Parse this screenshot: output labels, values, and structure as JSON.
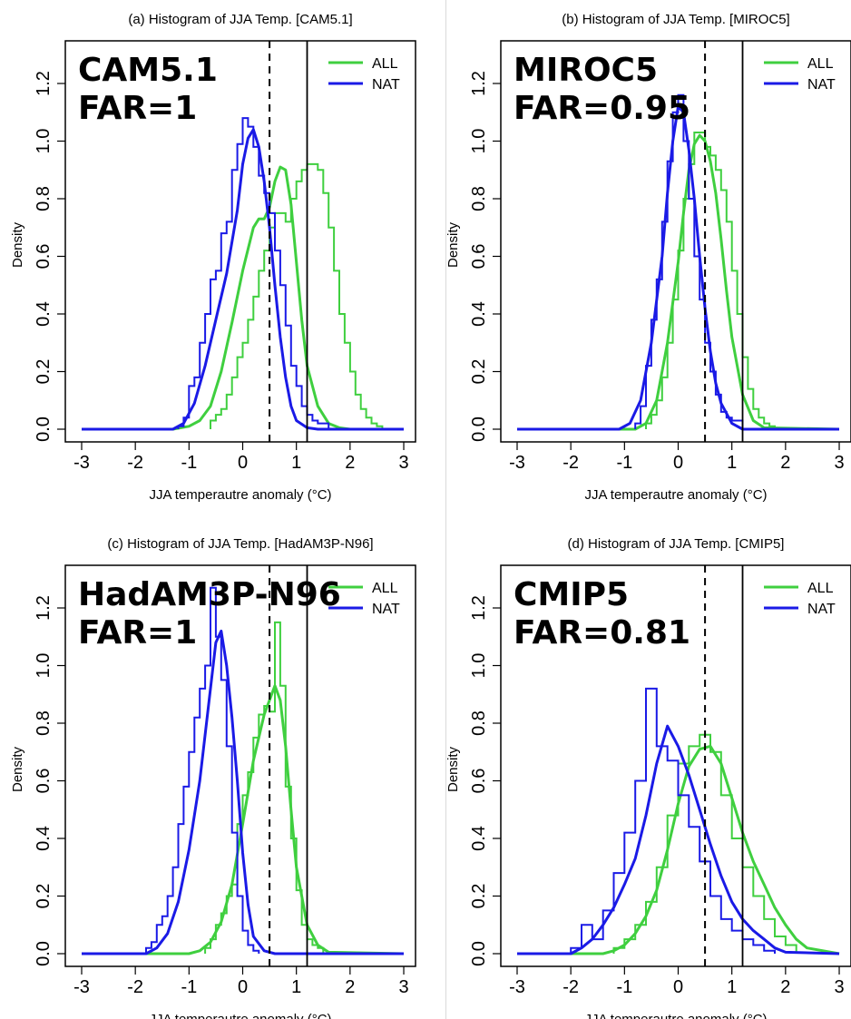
{
  "figure": {
    "colors": {
      "all": "#3fcf3f",
      "nat": "#1a1ae6",
      "axis": "#000000"
    },
    "xticks": [
      "-3",
      "-2",
      "-1",
      "0",
      "1",
      "2",
      "3"
    ],
    "yticks": [
      "0.0",
      "0.2",
      "0.4",
      "0.6",
      "0.8",
      "1.0",
      "1.2"
    ],
    "xlim": [
      -3,
      3
    ],
    "ylim": [
      0,
      1.3
    ]
  },
  "chart_data": [
    {
      "type": "histogram",
      "title": "(a) Histogram of JJA Temp. [CAM5.1]",
      "model": "CAM5.1",
      "far": "FAR=1",
      "xlabel": "JJA temperautre anomaly (°C)",
      "ylabel": "Density",
      "legend": [
        "ALL",
        "NAT"
      ],
      "legend_position": "top-right",
      "ref_dashed_x": 0.5,
      "ref_solid_x": 1.2,
      "series": [
        {
          "name": "ALL",
          "bin_width": 0.1,
          "hist_start": -0.6,
          "hist": [
            0.03,
            0.05,
            0.07,
            0.12,
            0.18,
            0.25,
            0.3,
            0.38,
            0.46,
            0.55,
            0.62,
            0.7,
            0.75,
            0.75,
            0.72,
            0.8,
            0.86,
            0.9,
            0.92,
            0.92,
            0.9,
            0.82,
            0.7,
            0.55,
            0.4,
            0.3,
            0.2,
            0.12,
            0.07,
            0.04,
            0.02,
            0.01
          ],
          "curve_x": [
            -3,
            -1.3,
            -1,
            -0.8,
            -0.6,
            -0.4,
            -0.2,
            0,
            0.2,
            0.3,
            0.4,
            0.5,
            0.6,
            0.7,
            0.8,
            0.9,
            1,
            1.1,
            1.2,
            1.4,
            1.6,
            1.8,
            2,
            3
          ],
          "curve_y": [
            0,
            0,
            0.01,
            0.03,
            0.08,
            0.2,
            0.37,
            0.55,
            0.7,
            0.73,
            0.73,
            0.77,
            0.86,
            0.91,
            0.9,
            0.78,
            0.58,
            0.38,
            0.22,
            0.08,
            0.02,
            0.005,
            0,
            0
          ]
        },
        {
          "name": "NAT",
          "bin_width": 0.1,
          "hist_start": -1.2,
          "hist": [
            0.01,
            0.04,
            0.15,
            0.18,
            0.3,
            0.4,
            0.52,
            0.55,
            0.68,
            0.72,
            0.9,
            0.99,
            1.08,
            1.05,
            0.98,
            0.88,
            0.82,
            0.75,
            0.62,
            0.5,
            0.36,
            0.22,
            0.15,
            0.08,
            0.05,
            0.03,
            0.02,
            0.02
          ],
          "curve_x": [
            -3,
            -1.3,
            -1.1,
            -0.9,
            -0.7,
            -0.5,
            -0.3,
            -0.1,
            0,
            0.1,
            0.2,
            0.3,
            0.4,
            0.5,
            0.6,
            0.7,
            0.8,
            0.9,
            1,
            1.2,
            1.4,
            3
          ],
          "curve_y": [
            0,
            0,
            0.02,
            0.09,
            0.22,
            0.38,
            0.54,
            0.76,
            0.92,
            1.01,
            1.04,
            0.98,
            0.86,
            0.7,
            0.5,
            0.32,
            0.18,
            0.08,
            0.03,
            0.005,
            0,
            0
          ]
        }
      ]
    },
    {
      "type": "histogram",
      "title": "(b) Histogram of JJA Temp. [MIROC5]",
      "model": "MIROC5",
      "far": "FAR=0.95",
      "xlabel": "JJA temperautre anomaly (°C)",
      "ylabel": "Density",
      "legend": [
        "ALL",
        "NAT"
      ],
      "legend_position": "top-right",
      "ref_dashed_x": 0.5,
      "ref_solid_x": 1.2,
      "series": [
        {
          "name": "ALL",
          "bin_width": 0.1,
          "hist_start": -0.6,
          "hist": [
            0.02,
            0.05,
            0.1,
            0.18,
            0.3,
            0.45,
            0.62,
            0.8,
            0.92,
            1.03,
            1.03,
            0.98,
            0.95,
            0.9,
            0.83,
            0.72,
            0.55,
            0.4,
            0.25,
            0.14,
            0.07,
            0.04,
            0.02,
            0.01
          ],
          "curve_x": [
            -3,
            -0.8,
            -0.6,
            -0.4,
            -0.2,
            0,
            0.1,
            0.2,
            0.3,
            0.4,
            0.5,
            0.6,
            0.7,
            0.8,
            0.9,
            1,
            1.2,
            1.4,
            1.6,
            3
          ],
          "curve_y": [
            0,
            0,
            0.02,
            0.1,
            0.3,
            0.58,
            0.75,
            0.9,
            0.99,
            1.02,
            1,
            0.93,
            0.82,
            0.66,
            0.48,
            0.32,
            0.12,
            0.03,
            0.005,
            0
          ]
        },
        {
          "name": "NAT",
          "bin_width": 0.1,
          "hist_start": -0.8,
          "hist": [
            0.02,
            0.08,
            0.22,
            0.38,
            0.52,
            0.72,
            0.93,
            1.1,
            1.16,
            1.0,
            0.8,
            0.6,
            0.45,
            0.3,
            0.2,
            0.12,
            0.06,
            0.04,
            0.03,
            0.03
          ],
          "curve_x": [
            -3,
            -1.1,
            -0.9,
            -0.7,
            -0.5,
            -0.3,
            -0.2,
            -0.1,
            0,
            0.1,
            0.2,
            0.3,
            0.4,
            0.5,
            0.6,
            0.7,
            0.8,
            1,
            1.2,
            3
          ],
          "curve_y": [
            0,
            0,
            0.02,
            0.1,
            0.3,
            0.6,
            0.82,
            1.0,
            1.12,
            1.1,
            0.97,
            0.8,
            0.6,
            0.42,
            0.27,
            0.16,
            0.09,
            0.02,
            0,
            0
          ]
        }
      ]
    },
    {
      "type": "histogram",
      "title": "(c) Histogram of JJA Temp. [HadAM3P-N96]",
      "model": "HadAM3P-N96",
      "far": "FAR=1",
      "xlabel": "JJA temperautre anomaly (°C)",
      "ylabel": "Density",
      "legend": [
        "ALL",
        "NAT"
      ],
      "legend_position": "top-right",
      "ref_dashed_x": 0.5,
      "ref_solid_x": 1.2,
      "series": [
        {
          "name": "ALL",
          "bin_width": 0.1,
          "hist_start": -0.7,
          "hist": [
            0.02,
            0.05,
            0.1,
            0.14,
            0.2,
            0.24,
            0.45,
            0.55,
            0.63,
            0.75,
            0.83,
            0.86,
            0.84,
            1.15,
            0.93,
            0.58,
            0.4,
            0.22,
            0.1,
            0.05,
            0.03,
            0.02
          ],
          "curve_x": [
            -3,
            -1,
            -0.8,
            -0.6,
            -0.4,
            -0.2,
            0,
            0.2,
            0.4,
            0.5,
            0.6,
            0.7,
            0.8,
            0.9,
            1,
            1.2,
            1.4,
            1.6,
            3
          ],
          "curve_y": [
            0,
            0,
            0.01,
            0.04,
            0.11,
            0.24,
            0.45,
            0.67,
            0.83,
            0.88,
            0.93,
            0.88,
            0.72,
            0.5,
            0.3,
            0.1,
            0.03,
            0.005,
            0
          ]
        },
        {
          "name": "NAT",
          "bin_width": 0.1,
          "hist_start": -1.8,
          "hist": [
            0.02,
            0.04,
            0.1,
            0.13,
            0.2,
            0.3,
            0.45,
            0.58,
            0.7,
            0.82,
            0.92,
            1.0,
            1.27,
            1.1,
            0.95,
            0.72,
            0.42,
            0.2,
            0.08,
            0.03,
            0.01
          ],
          "curve_x": [
            -3,
            -1.8,
            -1.6,
            -1.4,
            -1.2,
            -1,
            -0.8,
            -0.6,
            -0.5,
            -0.4,
            -0.3,
            -0.2,
            -0.1,
            0,
            0.1,
            0.2,
            0.4,
            0.6,
            3
          ],
          "curve_y": [
            0,
            0,
            0.02,
            0.07,
            0.18,
            0.36,
            0.6,
            0.92,
            1.08,
            1.12,
            1.0,
            0.82,
            0.6,
            0.35,
            0.17,
            0.06,
            0.01,
            0,
            0
          ]
        }
      ]
    },
    {
      "type": "histogram",
      "title": "(d) Histogram of JJA Temp. [CMIP5]",
      "model": "CMIP5",
      "far": "FAR=0.81",
      "xlabel": "JJA temperautre anomaly (°C)",
      "ylabel": "Density",
      "legend": [
        "ALL",
        "NAT"
      ],
      "legend_position": "top-right",
      "ref_dashed_x": 0.5,
      "ref_solid_x": 1.2,
      "series": [
        {
          "name": "ALL",
          "bin_width": 0.2,
          "hist_start": -1.2,
          "hist": [
            0.02,
            0.05,
            0.1,
            0.18,
            0.3,
            0.48,
            0.66,
            0.72,
            0.76,
            0.7,
            0.55,
            0.4,
            0.3,
            0.2,
            0.12,
            0.06,
            0.03
          ],
          "curve_x": [
            -3,
            -1.4,
            -1.2,
            -1,
            -0.8,
            -0.6,
            -0.4,
            -0.2,
            0,
            0.2,
            0.4,
            0.6,
            0.8,
            1,
            1.2,
            1.4,
            1.6,
            1.8,
            2,
            2.2,
            2.4,
            3
          ],
          "curve_y": [
            0,
            0,
            0.01,
            0.03,
            0.07,
            0.13,
            0.22,
            0.36,
            0.52,
            0.65,
            0.71,
            0.72,
            0.66,
            0.54,
            0.42,
            0.32,
            0.24,
            0.16,
            0.1,
            0.05,
            0.02,
            0
          ]
        },
        {
          "name": "NAT",
          "bin_width": 0.2,
          "hist_start": -2.0,
          "hist": [
            0.02,
            0.1,
            0.05,
            0.15,
            0.28,
            0.42,
            0.6,
            0.92,
            0.72,
            0.67,
            0.55,
            0.44,
            0.32,
            0.2,
            0.12,
            0.08,
            0.05,
            0.03,
            0.01
          ],
          "curve_x": [
            -3,
            -2,
            -1.8,
            -1.6,
            -1.4,
            -1.2,
            -1,
            -0.8,
            -0.6,
            -0.4,
            -0.2,
            0,
            0.2,
            0.4,
            0.6,
            0.8,
            1,
            1.2,
            1.4,
            1.6,
            1.8,
            2,
            3
          ],
          "curve_y": [
            0,
            0,
            0.02,
            0.05,
            0.1,
            0.16,
            0.24,
            0.33,
            0.48,
            0.66,
            0.79,
            0.72,
            0.62,
            0.5,
            0.38,
            0.27,
            0.18,
            0.12,
            0.08,
            0.05,
            0.02,
            0.005,
            0
          ]
        }
      ]
    }
  ]
}
